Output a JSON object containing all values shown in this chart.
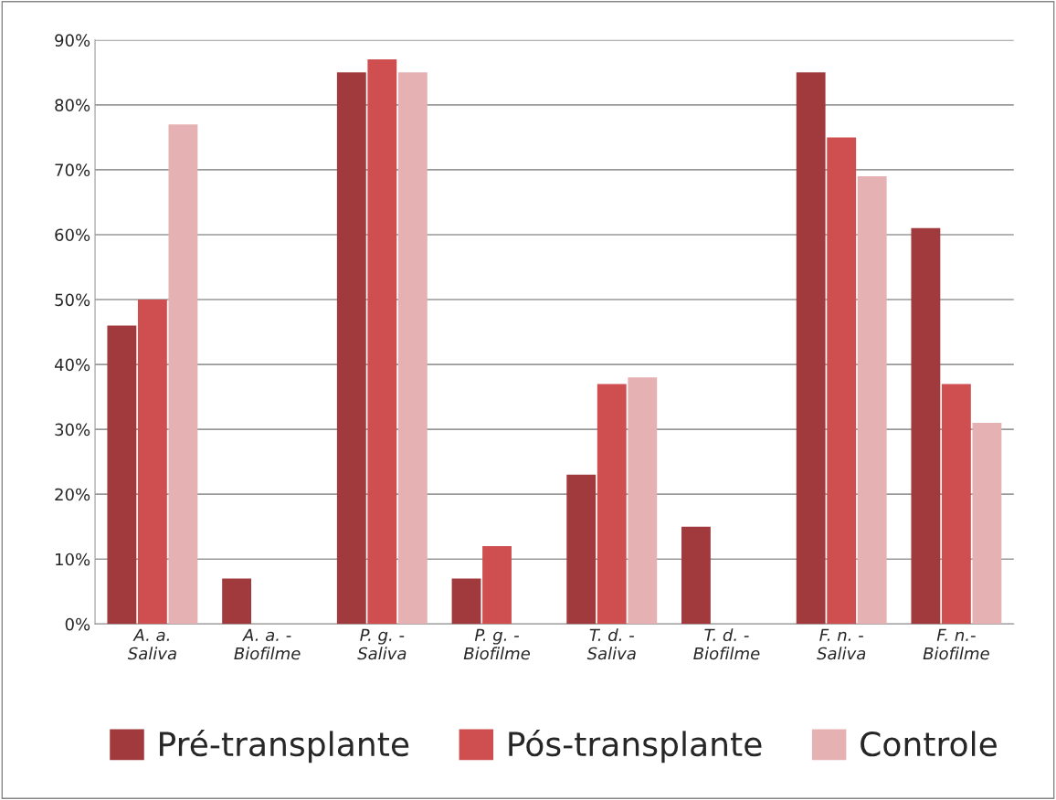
{
  "chart_data": {
    "type": "bar",
    "categories": [
      "A. a.\nSaliva",
      "A. a. -\nBiofilme",
      "P. g. -\nSaliva",
      "P. g. -\nBiofilme",
      "T. d. -\nSaliva",
      "T. d. -\nBiofilme",
      "F. n. -\nSaliva",
      "F. n.-\nBiofilme"
    ],
    "series": [
      {
        "name": "Pré-transplante",
        "color": "#a03a3c",
        "values": [
          46,
          7,
          85,
          7,
          23,
          15,
          85,
          61
        ]
      },
      {
        "name": "Pós-transplante",
        "color": "#cf4f50",
        "values": [
          50,
          0,
          87,
          12,
          37,
          0,
          75,
          37
        ]
      },
      {
        "name": "Controle",
        "color": "#e6b1b2",
        "values": [
          77,
          0,
          85,
          0,
          38,
          0,
          69,
          31
        ]
      }
    ],
    "ylim": [
      0,
      90
    ],
    "yticks": [
      {
        "value": 0,
        "label": "0%"
      },
      {
        "value": 10,
        "label": "10%"
      },
      {
        "value": 20,
        "label": "20%"
      },
      {
        "value": 30,
        "label": "30%"
      },
      {
        "value": 40,
        "label": "40%"
      },
      {
        "value": 50,
        "label": "50%"
      },
      {
        "value": 60,
        "label": "60%"
      },
      {
        "value": 70,
        "label": "70%"
      },
      {
        "value": 80,
        "label": "80%"
      },
      {
        "value": 90,
        "label": "90%"
      }
    ],
    "grid": "y",
    "legend": "bottom"
  }
}
